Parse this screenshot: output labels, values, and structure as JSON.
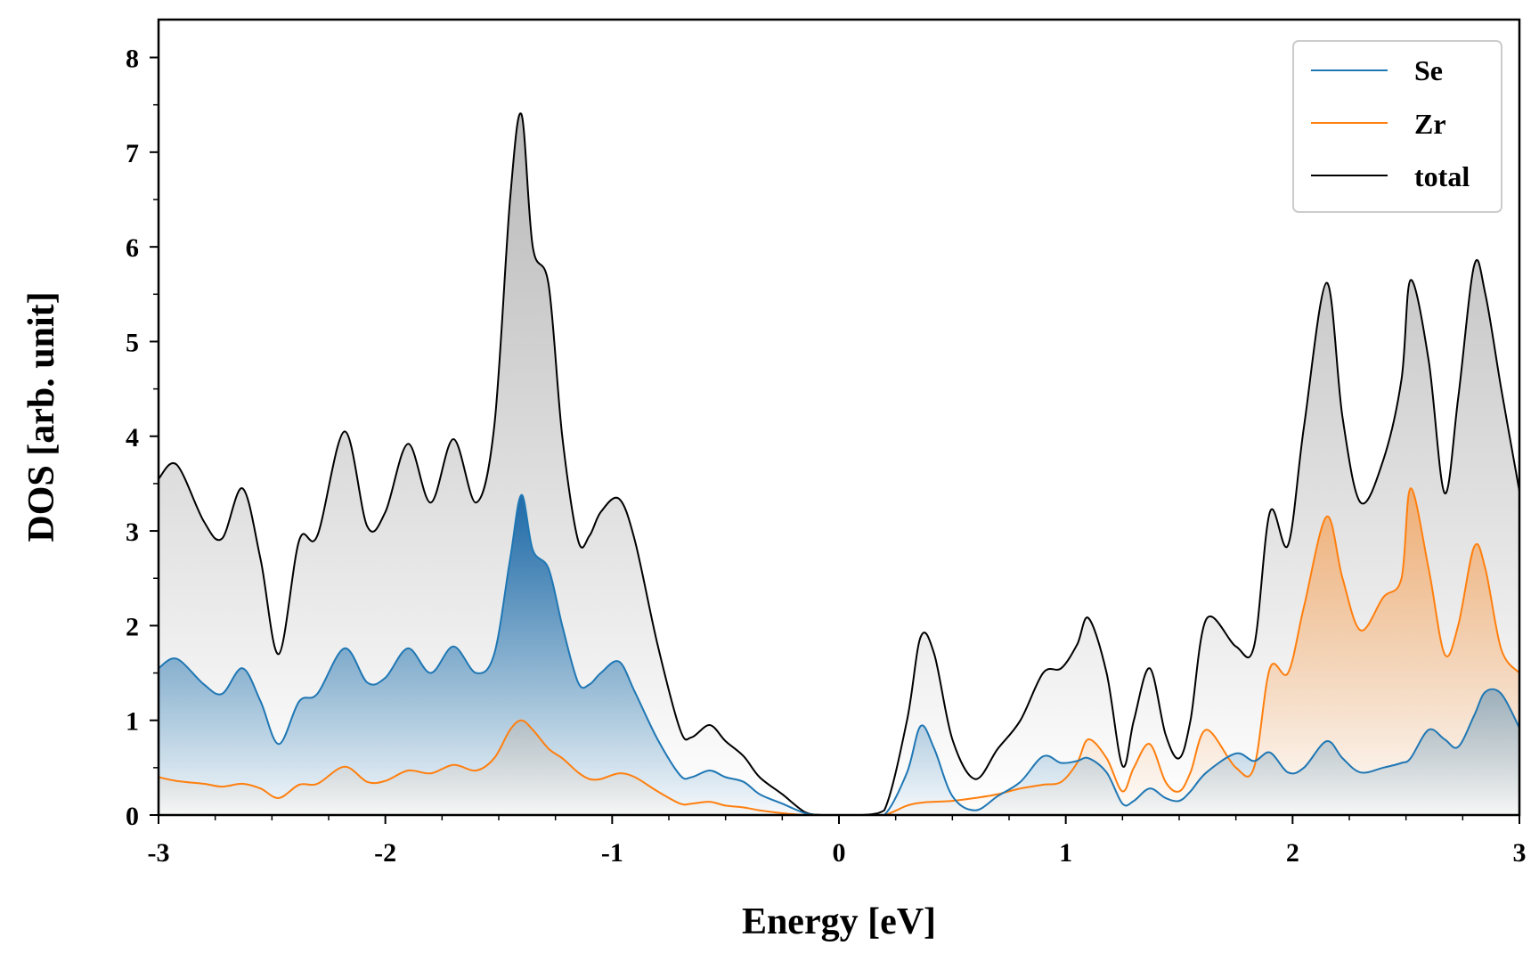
{
  "chart_data": {
    "type": "area",
    "title": "",
    "xlabel": "Energy [eV]",
    "ylabel": "DOS [arb. unit]",
    "xlim": [
      -3,
      3
    ],
    "ylim": [
      0,
      8.4
    ],
    "xticks": [
      -3,
      -2,
      -1,
      0,
      1,
      2,
      3
    ],
    "yticks": [
      0,
      1,
      2,
      3,
      4,
      5,
      6,
      7,
      8
    ],
    "xtick_labels": [
      "-3",
      "-2",
      "-1",
      "0",
      "1",
      "2",
      "3"
    ],
    "ytick_labels": [
      "0",
      "1",
      "2",
      "3",
      "4",
      "5",
      "6",
      "7",
      "8"
    ],
    "grid": false,
    "legend_position": "top-right",
    "series": [
      {
        "name": "Se",
        "color": "#1f77b4",
        "x": [
          -3.0,
          -2.92,
          -2.8,
          -2.72,
          -2.63,
          -2.55,
          -2.47,
          -2.38,
          -2.3,
          -2.18,
          -2.08,
          -2.0,
          -1.9,
          -1.8,
          -1.7,
          -1.6,
          -1.52,
          -1.45,
          -1.4,
          -1.35,
          -1.28,
          -1.22,
          -1.15,
          -1.1,
          -1.05,
          -0.97,
          -0.9,
          -0.8,
          -0.7,
          -0.65,
          -0.57,
          -0.5,
          -0.42,
          -0.35,
          -0.25,
          -0.15,
          -0.08,
          0.0,
          0.1,
          0.2,
          0.3,
          0.36,
          0.42,
          0.5,
          0.6,
          0.7,
          0.8,
          0.9,
          0.98,
          1.05,
          1.1,
          1.18,
          1.25,
          1.3,
          1.37,
          1.44,
          1.5,
          1.55,
          1.62,
          1.75,
          1.83,
          1.9,
          1.98,
          2.05,
          2.15,
          2.22,
          2.3,
          2.4,
          2.48,
          2.52,
          2.6,
          2.67,
          2.73,
          2.8,
          2.85,
          2.92,
          3.0
        ],
        "values": [
          1.55,
          1.65,
          1.38,
          1.28,
          1.55,
          1.2,
          0.75,
          1.2,
          1.28,
          1.76,
          1.4,
          1.45,
          1.76,
          1.5,
          1.78,
          1.5,
          1.7,
          2.7,
          3.38,
          2.8,
          2.6,
          2.0,
          1.4,
          1.38,
          1.5,
          1.62,
          1.3,
          0.8,
          0.42,
          0.4,
          0.47,
          0.4,
          0.35,
          0.22,
          0.12,
          0.02,
          0.0,
          0.0,
          0.0,
          0.0,
          0.45,
          0.94,
          0.7,
          0.2,
          0.05,
          0.2,
          0.35,
          0.62,
          0.55,
          0.57,
          0.6,
          0.45,
          0.12,
          0.15,
          0.28,
          0.18,
          0.15,
          0.25,
          0.45,
          0.65,
          0.57,
          0.66,
          0.45,
          0.5,
          0.78,
          0.6,
          0.45,
          0.5,
          0.55,
          0.6,
          0.9,
          0.8,
          0.72,
          1.05,
          1.3,
          1.28,
          0.92
        ]
      },
      {
        "name": "Zr",
        "color": "#ff7f0e",
        "x": [
          -3.0,
          -2.92,
          -2.8,
          -2.72,
          -2.63,
          -2.55,
          -2.47,
          -2.38,
          -2.3,
          -2.18,
          -2.08,
          -2.0,
          -1.9,
          -1.8,
          -1.7,
          -1.6,
          -1.52,
          -1.45,
          -1.4,
          -1.35,
          -1.28,
          -1.22,
          -1.15,
          -1.1,
          -1.05,
          -0.97,
          -0.9,
          -0.8,
          -0.7,
          -0.65,
          -0.57,
          -0.5,
          -0.42,
          -0.35,
          -0.25,
          -0.15,
          -0.08,
          0.0,
          0.1,
          0.2,
          0.3,
          0.36,
          0.42,
          0.5,
          0.6,
          0.7,
          0.8,
          0.9,
          0.98,
          1.05,
          1.1,
          1.18,
          1.25,
          1.3,
          1.37,
          1.44,
          1.5,
          1.55,
          1.62,
          1.75,
          1.83,
          1.9,
          1.98,
          2.05,
          2.15,
          2.22,
          2.3,
          2.4,
          2.48,
          2.52,
          2.6,
          2.67,
          2.73,
          2.8,
          2.85,
          2.92,
          3.0
        ],
        "values": [
          0.4,
          0.36,
          0.33,
          0.3,
          0.33,
          0.28,
          0.18,
          0.32,
          0.33,
          0.51,
          0.35,
          0.36,
          0.47,
          0.44,
          0.53,
          0.47,
          0.6,
          0.9,
          1.0,
          0.9,
          0.7,
          0.6,
          0.45,
          0.38,
          0.38,
          0.44,
          0.4,
          0.25,
          0.12,
          0.12,
          0.14,
          0.1,
          0.08,
          0.05,
          0.02,
          0.0,
          0.0,
          0.0,
          0.0,
          0.0,
          0.1,
          0.13,
          0.14,
          0.15,
          0.18,
          0.22,
          0.28,
          0.32,
          0.35,
          0.55,
          0.8,
          0.6,
          0.25,
          0.5,
          0.75,
          0.35,
          0.25,
          0.45,
          0.9,
          0.5,
          0.5,
          1.55,
          1.5,
          2.2,
          3.15,
          2.5,
          1.95,
          2.3,
          2.5,
          3.45,
          2.6,
          1.7,
          2.0,
          2.83,
          2.6,
          1.75,
          1.5
        ]
      },
      {
        "name": "total",
        "color": "#000000",
        "x": [
          -3.0,
          -2.92,
          -2.8,
          -2.72,
          -2.63,
          -2.55,
          -2.47,
          -2.38,
          -2.3,
          -2.18,
          -2.08,
          -2.0,
          -1.9,
          -1.8,
          -1.7,
          -1.6,
          -1.52,
          -1.45,
          -1.4,
          -1.35,
          -1.28,
          -1.22,
          -1.15,
          -1.1,
          -1.05,
          -0.97,
          -0.9,
          -0.8,
          -0.7,
          -0.65,
          -0.57,
          -0.5,
          -0.42,
          -0.35,
          -0.25,
          -0.15,
          -0.08,
          0.0,
          0.1,
          0.2,
          0.3,
          0.36,
          0.42,
          0.5,
          0.6,
          0.7,
          0.8,
          0.9,
          0.98,
          1.05,
          1.1,
          1.18,
          1.25,
          1.3,
          1.37,
          1.44,
          1.5,
          1.55,
          1.62,
          1.75,
          1.83,
          1.9,
          1.98,
          2.05,
          2.15,
          2.22,
          2.3,
          2.4,
          2.48,
          2.52,
          2.6,
          2.67,
          2.73,
          2.8,
          2.85,
          2.92,
          3.0
        ],
        "values": [
          3.55,
          3.7,
          3.1,
          2.92,
          3.45,
          2.7,
          1.7,
          2.9,
          2.95,
          4.05,
          3.05,
          3.2,
          3.92,
          3.3,
          3.97,
          3.3,
          4.1,
          6.5,
          7.4,
          6.0,
          5.6,
          4.0,
          2.9,
          2.95,
          3.2,
          3.34,
          2.9,
          1.8,
          0.9,
          0.82,
          0.95,
          0.78,
          0.62,
          0.4,
          0.22,
          0.03,
          0.0,
          0.0,
          0.0,
          0.05,
          1.0,
          1.88,
          1.7,
          0.8,
          0.38,
          0.7,
          1.0,
          1.5,
          1.55,
          1.8,
          2.08,
          1.5,
          0.52,
          1.0,
          1.55,
          0.85,
          0.6,
          1.0,
          2.07,
          1.78,
          1.78,
          3.2,
          2.85,
          4.1,
          5.62,
          4.2,
          3.3,
          3.75,
          4.6,
          5.65,
          4.8,
          3.4,
          4.4,
          5.8,
          5.5,
          4.5,
          3.42
        ]
      }
    ]
  }
}
